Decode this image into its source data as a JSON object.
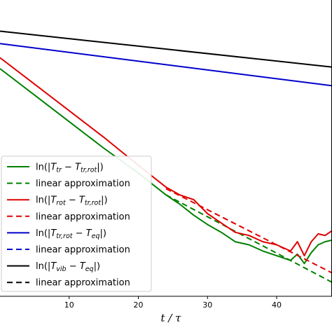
{
  "chart_data": {
    "type": "line",
    "xlabel": "t / τ",
    "ylabel": "",
    "title": "",
    "xlim": [
      0,
      48
    ],
    "ylim": [
      -9.5,
      0
    ],
    "x_ticks": [
      10,
      20,
      30,
      40
    ],
    "grid": false,
    "legend_position": "lower-left",
    "legend": [
      {
        "text": "ln(|T_tr − T_tr,rot|)",
        "parts": [
          [
            "ln(|",
            ""
          ],
          [
            "T",
            ""
          ],
          [
            "tr",
            "sub"
          ],
          [
            " − ",
            ""
          ],
          [
            "T",
            ""
          ],
          [
            "tr,rot",
            "sub"
          ],
          [
            "|)",
            ""
          ]
        ],
        "color": "#008000",
        "dash": false
      },
      {
        "text": "linear approximation",
        "parts": [
          [
            "linear approximation",
            ""
          ]
        ],
        "color": "#008000",
        "dash": true
      },
      {
        "text": "ln(|T_rot − T_tr,rot|)",
        "parts": [
          [
            "ln(|",
            ""
          ],
          [
            "T",
            ""
          ],
          [
            "rot",
            "sub"
          ],
          [
            " − ",
            ""
          ],
          [
            "T",
            ""
          ],
          [
            "tr,rot",
            "sub"
          ],
          [
            "|)",
            ""
          ]
        ],
        "color": "#e00000",
        "dash": false
      },
      {
        "text": "linear approximation",
        "parts": [
          [
            "linear approximation",
            ""
          ]
        ],
        "color": "#e00000",
        "dash": true
      },
      {
        "text": "ln(|T_tr,rot − T_eq|)",
        "parts": [
          [
            "ln(|",
            ""
          ],
          [
            "T",
            ""
          ],
          [
            "tr,rot",
            "sub"
          ],
          [
            " − ",
            ""
          ],
          [
            "T",
            ""
          ],
          [
            "eq",
            "sub"
          ],
          [
            "|)",
            ""
          ]
        ],
        "color": "#0000cc",
        "dash": false
      },
      {
        "text": "linear approximation",
        "parts": [
          [
            "linear approximation",
            ""
          ]
        ],
        "color": "#0000cc",
        "dash": true
      },
      {
        "text": "ln(|T_vib − T_eq|)",
        "parts": [
          [
            "ln(|",
            ""
          ],
          [
            "T",
            ""
          ],
          [
            "vib",
            "sub"
          ],
          [
            " − ",
            ""
          ],
          [
            "T",
            ""
          ],
          [
            "eq",
            "sub"
          ],
          [
            "|)",
            ""
          ]
        ],
        "color": "#000000",
        "dash": false
      },
      {
        "text": "linear approximation",
        "parts": [
          [
            "linear approximation",
            ""
          ]
        ],
        "color": "#000000",
        "dash": true
      }
    ],
    "series": [
      {
        "color": "#008000",
        "dash": false,
        "x": [
          0,
          5,
          10,
          15,
          20,
          24,
          26,
          28,
          30,
          32,
          34,
          36,
          38,
          40,
          42,
          43,
          44,
          45,
          46,
          47,
          48
        ],
        "y": [
          -2.2,
          -3.05,
          -3.9,
          -4.75,
          -5.55,
          -6.25,
          -6.55,
          -6.9,
          -7.2,
          -7.45,
          -7.75,
          -7.85,
          -8.05,
          -8.2,
          -8.35,
          -8.15,
          -8.45,
          -8.1,
          -7.85,
          -7.75,
          -7.7
        ]
      },
      {
        "color": "#008000",
        "dash": true,
        "x": [
          24,
          48
        ],
        "y": [
          -6.25,
          -9.05
        ]
      },
      {
        "color": "#e00000",
        "dash": false,
        "x": [
          0,
          5,
          10,
          15,
          20,
          24,
          26,
          28,
          30,
          32,
          34,
          36,
          38,
          40,
          42,
          43,
          44,
          45,
          46,
          47,
          48
        ],
        "y": [
          -1.85,
          -2.7,
          -3.55,
          -4.4,
          -5.3,
          -6.0,
          -6.25,
          -6.4,
          -6.85,
          -7.15,
          -7.45,
          -7.55,
          -7.75,
          -7.85,
          -8.05,
          -7.75,
          -8.2,
          -7.75,
          -7.5,
          -7.55,
          -7.4
        ]
      },
      {
        "color": "#e00000",
        "dash": true,
        "x": [
          24,
          48
        ],
        "y": [
          -6.05,
          -8.75
        ]
      },
      {
        "color": "#0000cc",
        "dash": false,
        "x": [
          0,
          48
        ],
        "y": [
          -1.4,
          -2.75
        ]
      },
      {
        "color": "#000000",
        "dash": false,
        "x": [
          0,
          48
        ],
        "y": [
          -1.0,
          -2.15
        ]
      }
    ]
  }
}
